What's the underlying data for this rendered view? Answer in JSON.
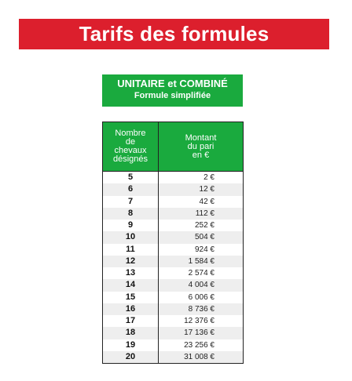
{
  "title": "Tarifs des formules",
  "formula": {
    "name": "UNITAIRE et COMBINÉ",
    "subtitle": "Formule simplifiée"
  },
  "table": {
    "headers": {
      "horses": "Nombre\nde\nchevaux\ndésignés",
      "amount": "Montant\ndu pari\nen €"
    },
    "rows": [
      {
        "horses": "5",
        "amount": "2 €"
      },
      {
        "horses": "6",
        "amount": "12 €"
      },
      {
        "horses": "7",
        "amount": "42 €"
      },
      {
        "horses": "8",
        "amount": "112 €"
      },
      {
        "horses": "9",
        "amount": "252 €"
      },
      {
        "horses": "10",
        "amount": "504 €"
      },
      {
        "horses": "11",
        "amount": "924 €"
      },
      {
        "horses": "12",
        "amount": "1 584 €"
      },
      {
        "horses": "13",
        "amount": "2 574 €"
      },
      {
        "horses": "14",
        "amount": "4 004 €"
      },
      {
        "horses": "15",
        "amount": "6 006 €"
      },
      {
        "horses": "16",
        "amount": "8 736 €"
      },
      {
        "horses": "17",
        "amount": "12 376 €"
      },
      {
        "horses": "18",
        "amount": "17 136 €"
      },
      {
        "horses": "19",
        "amount": "23 256 €"
      },
      {
        "horses": "20",
        "amount": "31 008 €"
      }
    ]
  },
  "colors": {
    "title_banner": "#dc1f2d",
    "green": "#1aaa3e",
    "row_alt": "#eeeeee",
    "border": "#222222"
  }
}
